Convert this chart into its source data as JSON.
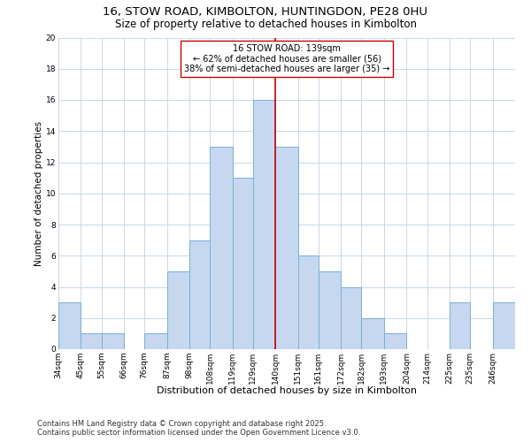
{
  "title": "16, STOW ROAD, KIMBOLTON, HUNTINGDON, PE28 0HU",
  "subtitle": "Size of property relative to detached houses in Kimbolton",
  "xlabel": "Distribution of detached houses by size in Kimbolton",
  "ylabel": "Number of detached properties",
  "bin_labels": [
    "34sqm",
    "45sqm",
    "55sqm",
    "66sqm",
    "76sqm",
    "87sqm",
    "98sqm",
    "108sqm",
    "119sqm",
    "129sqm",
    "140sqm",
    "151sqm",
    "161sqm",
    "172sqm",
    "182sqm",
    "193sqm",
    "204sqm",
    "214sqm",
    "225sqm",
    "235sqm",
    "246sqm"
  ],
  "bin_edges": [
    34,
    45,
    55,
    66,
    76,
    87,
    98,
    108,
    119,
    129,
    140,
    151,
    161,
    172,
    182,
    193,
    204,
    214,
    225,
    235,
    246
  ],
  "counts": [
    3,
    1,
    1,
    0,
    1,
    5,
    7,
    13,
    11,
    16,
    13,
    6,
    5,
    4,
    2,
    1,
    0,
    0,
    3,
    0,
    3
  ],
  "bar_color": "#c5d8f0",
  "bar_edge_color": "#7aaed6",
  "grid_color": "#c8d8e8",
  "vline_x": 140,
  "vline_color": "#cc0000",
  "annotation_line1": "16 STOW ROAD: 139sqm",
  "annotation_line2": "← 62% of detached houses are smaller (56)",
  "annotation_line3": "38% of semi-detached houses are larger (35) →",
  "annotation_box_edgecolor": "#cc0000",
  "annotation_box_facecolor": "#ffffff",
  "ylim": [
    0,
    20
  ],
  "yticks": [
    0,
    2,
    4,
    6,
    8,
    10,
    12,
    14,
    16,
    18,
    20
  ],
  "footer1": "Contains HM Land Registry data © Crown copyright and database right 2025.",
  "footer2": "Contains public sector information licensed under the Open Government Licence v3.0.",
  "title_fontsize": 9.5,
  "subtitle_fontsize": 8.5,
  "xlabel_fontsize": 8,
  "ylabel_fontsize": 7.5,
  "tick_fontsize": 6.5,
  "annot_fontsize": 7,
  "footer_fontsize": 6
}
